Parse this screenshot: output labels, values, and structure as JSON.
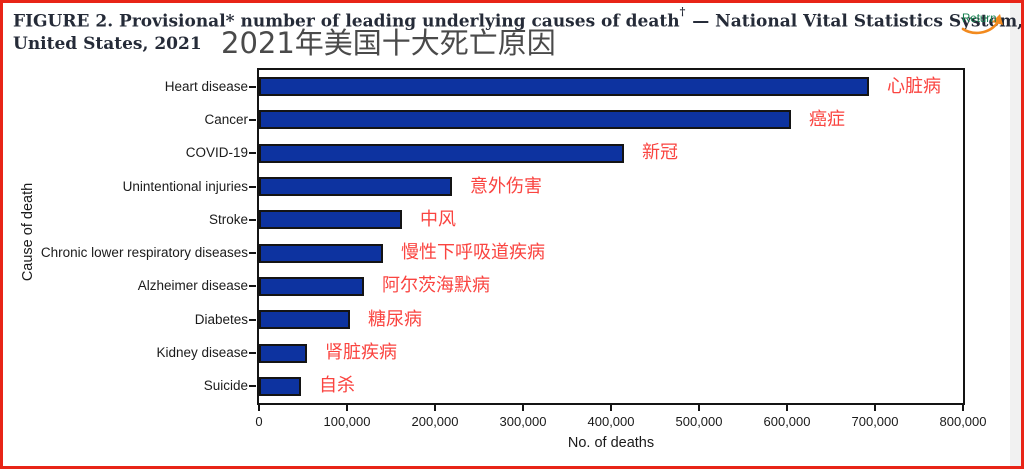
{
  "header": {
    "title_line1": "FIGURE 2. Provisional* number of leading underlying causes of death",
    "title_dagger": "†",
    "title_rest": " — National Vital Statistics System,",
    "title_line2": "United States, 2021",
    "chinese_title": "2021年美国十大死亡原因"
  },
  "return_button": {
    "label": "Return",
    "icon": "curved-arrow-icon"
  },
  "colors": {
    "page_frame_red": "#e82417",
    "bar_fill": "#0d33a0",
    "bar_outline": "#141414",
    "annotation_red": "#fa4440",
    "title_text": "#252b38",
    "chinese_title_text": "#4a4a4a",
    "return_green": "#15804f",
    "return_arrow_orange": "#f28a1e",
    "axis_text": "#1a1a1a",
    "right_gutter_gray": "#f1f1f1"
  },
  "chart_data": {
    "type": "bar",
    "orientation": "horizontal",
    "title": "Provisional number of leading underlying causes of death, United States, 2021",
    "xlabel": "No. of deaths",
    "ylabel": "Cause of death",
    "xlim": [
      0,
      800000
    ],
    "grid": false,
    "legend": "none",
    "x_tick_values": [
      0,
      100000,
      200000,
      300000,
      400000,
      500000,
      600000,
      700000,
      800000
    ],
    "x_tick_labels": [
      "0",
      "100,000",
      "200,000",
      "300,000",
      "400,000",
      "500,000",
      "600,000",
      "700,000",
      "800,000"
    ],
    "categories": [
      "Heart disease",
      "Cancer",
      "COVID-19",
      "Unintentional injuries",
      "Stroke",
      "Chronic lower respiratory diseases",
      "Alzheimer disease",
      "Diabetes",
      "Kidney disease",
      "Suicide"
    ],
    "values": [
      693000,
      605000,
      415000,
      219000,
      163000,
      141000,
      119000,
      103000,
      54000,
      48000
    ],
    "annotations_zh": [
      "心脏病",
      "癌症",
      "新冠",
      "意外伤害",
      "中风",
      "慢性下呼吸道疾病",
      "阿尔茨海默病",
      "糖尿病",
      "肾脏疾病",
      "自杀"
    ]
  }
}
